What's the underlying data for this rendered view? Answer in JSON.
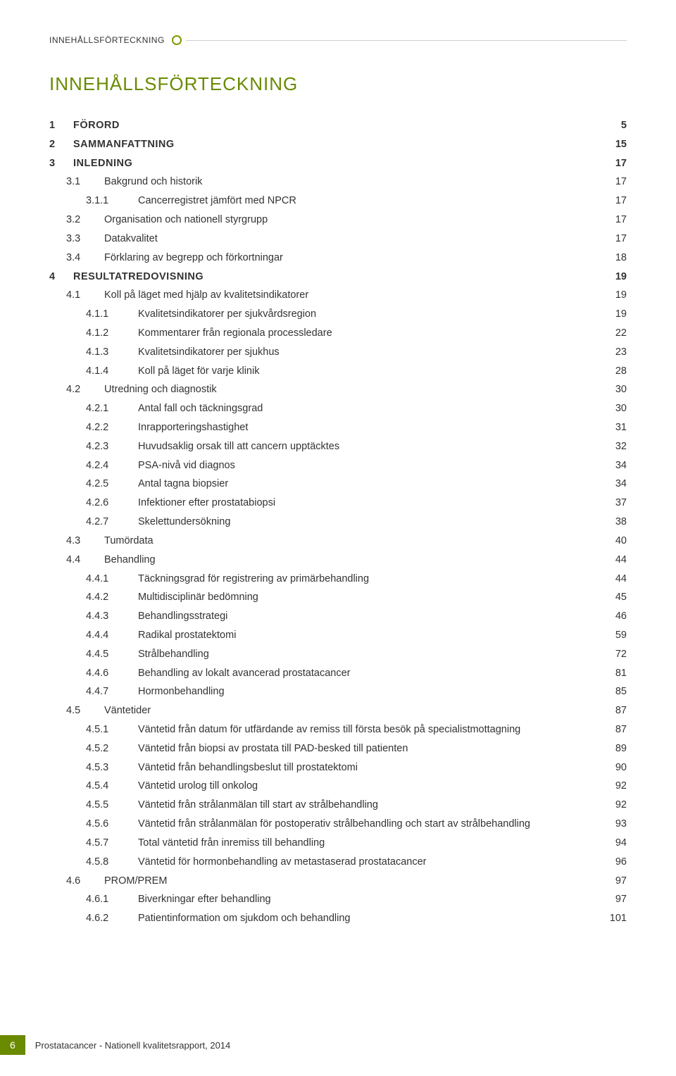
{
  "header_label": "INNEHÅLLSFÖRTECKNING",
  "title": "INNEHÅLLSFÖRTECKNING",
  "colors": {
    "accent": "#6a8a00",
    "text": "#333333",
    "line": "#cfcfcf",
    "background": "#ffffff"
  },
  "footer": {
    "page_number": "6",
    "text": "Prostatacancer - Nationell kvalitetsrapport, 2014"
  },
  "toc": [
    {
      "level": 0,
      "num": "1",
      "label": "FÖRORD",
      "page": "5"
    },
    {
      "level": 0,
      "num": "2",
      "label": "SAMMANFATTNING",
      "page": "15"
    },
    {
      "level": 0,
      "num": "3",
      "label": "INLEDNING",
      "page": "17"
    },
    {
      "level": 1,
      "num": "3.1",
      "label": "Bakgrund och historik",
      "page": "17"
    },
    {
      "level": 2,
      "num": "3.1.1",
      "label": "Cancerregistret jämfört med NPCR",
      "page": "17"
    },
    {
      "level": 1,
      "num": "3.2",
      "label": "Organisation och nationell styrgrupp",
      "page": "17"
    },
    {
      "level": 1,
      "num": "3.3",
      "label": "Datakvalitet",
      "page": "17"
    },
    {
      "level": 1,
      "num": "3.4",
      "label": "Förklaring av begrepp och förkortningar",
      "page": "18"
    },
    {
      "level": 0,
      "num": "4",
      "label": "RESULTATREDOVISNING",
      "page": "19"
    },
    {
      "level": 1,
      "num": "4.1",
      "label": "Koll på läget med hjälp av kvalitetsindikatorer",
      "page": "19"
    },
    {
      "level": 2,
      "num": "4.1.1",
      "label": "Kvalitetsindikatorer per sjukvårdsregion",
      "page": "19"
    },
    {
      "level": 2,
      "num": "4.1.2",
      "label": "Kommentarer från regionala processledare",
      "page": "22"
    },
    {
      "level": 2,
      "num": "4.1.3",
      "label": "Kvalitetsindikatorer per sjukhus",
      "page": "23"
    },
    {
      "level": 2,
      "num": "4.1.4",
      "label": "Koll på läget för varje klinik",
      "page": "28"
    },
    {
      "level": 1,
      "num": "4.2",
      "label": "Utredning och diagnostik",
      "page": "30"
    },
    {
      "level": 2,
      "num": "4.2.1",
      "label": "Antal fall och täckningsgrad",
      "page": "30"
    },
    {
      "level": 2,
      "num": "4.2.2",
      "label": "Inrapporteringshastighet",
      "page": "31"
    },
    {
      "level": 2,
      "num": "4.2.3",
      "label": "Huvudsaklig orsak till att cancern upptäcktes",
      "page": "32"
    },
    {
      "level": 2,
      "num": "4.2.4",
      "label": "PSA-nivå vid diagnos",
      "page": "34"
    },
    {
      "level": 2,
      "num": "4.2.5",
      "label": "Antal tagna biopsier",
      "page": "34"
    },
    {
      "level": 2,
      "num": "4.2.6",
      "label": "Infektioner efter prostatabiopsi",
      "page": "37"
    },
    {
      "level": 2,
      "num": "4.2.7",
      "label": "Skelettundersökning",
      "page": "38"
    },
    {
      "level": 1,
      "num": "4.3",
      "label": "Tumördata",
      "page": "40"
    },
    {
      "level": 1,
      "num": "4.4",
      "label": "Behandling",
      "page": "44"
    },
    {
      "level": 2,
      "num": "4.4.1",
      "label": "Täckningsgrad för registrering av primärbehandling",
      "page": "44"
    },
    {
      "level": 2,
      "num": "4.4.2",
      "label": "Multidisciplinär bedömning",
      "page": "45"
    },
    {
      "level": 2,
      "num": "4.4.3",
      "label": "Behandlingsstrategi",
      "page": "46"
    },
    {
      "level": 2,
      "num": "4.4.4",
      "label": "Radikal prostatektomi",
      "page": "59"
    },
    {
      "level": 2,
      "num": "4.4.5",
      "label": "Strålbehandling",
      "page": "72"
    },
    {
      "level": 2,
      "num": "4.4.6",
      "label": "Behandling av lokalt avancerad prostatacancer",
      "page": "81"
    },
    {
      "level": 2,
      "num": "4.4.7",
      "label": "Hormonbehandling",
      "page": "85"
    },
    {
      "level": 1,
      "num": "4.5",
      "label": "Väntetider",
      "page": "87"
    },
    {
      "level": 2,
      "num": "4.5.1",
      "label": "Väntetid från datum för utfärdande av remiss till första besök på specialistmottagning",
      "page": "87"
    },
    {
      "level": 2,
      "num": "4.5.2",
      "label": "Väntetid från biopsi av prostata till PAD-besked till patienten",
      "page": "89"
    },
    {
      "level": 2,
      "num": "4.5.3",
      "label": "Väntetid från behandlingsbeslut till prostatektomi",
      "page": "90"
    },
    {
      "level": 2,
      "num": "4.5.4",
      "label": "Väntetid urolog till onkolog",
      "page": "92"
    },
    {
      "level": 2,
      "num": "4.5.5",
      "label": "Väntetid från strålanmälan till start av strålbehandling",
      "page": "92"
    },
    {
      "level": 2,
      "num": "4.5.6",
      "label": "Väntetid från strålanmälan för postoperativ strålbehandling och start av strålbehandling",
      "page": "93"
    },
    {
      "level": 2,
      "num": "4.5.7",
      "label": "Total väntetid från inremiss till behandling",
      "page": "94"
    },
    {
      "level": 2,
      "num": "4.5.8",
      "label": "Väntetid för hormonbehandling av metastaserad prostatacancer",
      "page": "96"
    },
    {
      "level": 1,
      "num": "4.6",
      "label": "PROM/PREM",
      "page": "97"
    },
    {
      "level": 2,
      "num": "4.6.1",
      "label": "Biverkningar efter behandling",
      "page": "97"
    },
    {
      "level": 2,
      "num": "4.6.2",
      "label": "Patientinformation om sjukdom och behandling",
      "page": "101"
    }
  ]
}
